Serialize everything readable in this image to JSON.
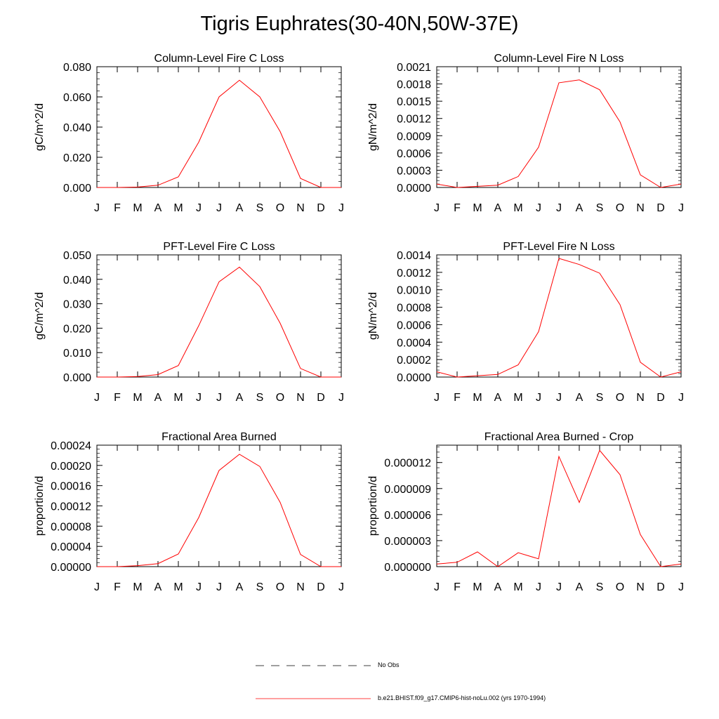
{
  "title": "Tigris Euphrates(30-40N,50W-37E)",
  "colors": {
    "series": "#ff0000",
    "axis": "#000000"
  },
  "legend": {
    "items": [
      {
        "label": "No Obs",
        "style": "dashed",
        "color": "#000000"
      },
      {
        "label": "b.e21.BHIST.f09_g17.CMIP6-hist-noLu.002 (yrs 1970-1994)",
        "style": "solid",
        "color": "#ff0000"
      }
    ]
  },
  "chart_data": [
    {
      "type": "line",
      "title": "Column-Level Fire C Loss",
      "ylabel": "gC/m^2/d",
      "categories": [
        "J",
        "F",
        "M",
        "A",
        "M",
        "J",
        "J",
        "A",
        "S",
        "O",
        "N",
        "D",
        "J"
      ],
      "ylim": [
        0,
        0.08
      ],
      "yticks": [
        "0.000",
        "0.020",
        "0.040",
        "0.060",
        "0.080"
      ],
      "series": [
        {
          "values": [
            0.0,
            0.0,
            0.0003,
            0.0015,
            0.007,
            0.03,
            0.06,
            0.071,
            0.06,
            0.037,
            0.006,
            0.0,
            0.0
          ]
        }
      ]
    },
    {
      "type": "line",
      "title": "Column-Level Fire N Loss",
      "ylabel": "gN/m^2/d",
      "categories": [
        "J",
        "F",
        "M",
        "A",
        "M",
        "J",
        "J",
        "A",
        "S",
        "O",
        "N",
        "D",
        "J"
      ],
      "ylim": [
        0,
        0.0021
      ],
      "yticks": [
        "0.0000",
        "0.0003",
        "0.0006",
        "0.0009",
        "0.0012",
        "0.0015",
        "0.0018",
        "0.0021"
      ],
      "series": [
        {
          "values": [
            6e-05,
            0.0,
            2e-05,
            4e-05,
            0.00019,
            0.0007,
            0.00182,
            0.00187,
            0.0017,
            0.00114,
            0.00022,
            0.0,
            6e-05
          ]
        }
      ]
    },
    {
      "type": "line",
      "title": "PFT-Level Fire C Loss",
      "ylabel": "gC/m^2/d",
      "categories": [
        "J",
        "F",
        "M",
        "A",
        "M",
        "J",
        "J",
        "A",
        "S",
        "O",
        "N",
        "D",
        "J"
      ],
      "ylim": [
        0,
        0.05
      ],
      "yticks": [
        "0.000",
        "0.010",
        "0.020",
        "0.030",
        "0.040",
        "0.050"
      ],
      "series": [
        {
          "values": [
            0.0,
            0.0,
            0.0002,
            0.001,
            0.0047,
            0.021,
            0.039,
            0.045,
            0.037,
            0.022,
            0.0035,
            0.0,
            0.0
          ]
        }
      ]
    },
    {
      "type": "line",
      "title": "PFT-Level Fire N Loss",
      "ylabel": "gN/m^2/d",
      "categories": [
        "J",
        "F",
        "M",
        "A",
        "M",
        "J",
        "J",
        "A",
        "S",
        "O",
        "N",
        "D",
        "J"
      ],
      "ylim": [
        0,
        0.0014
      ],
      "yticks": [
        "0.0000",
        "0.0002",
        "0.0004",
        "0.0006",
        "0.0008",
        "0.0010",
        "0.0012",
        "0.0014"
      ],
      "series": [
        {
          "values": [
            6e-05,
            0.0,
            1.5e-05,
            3e-05,
            0.00014,
            0.00052,
            0.00136,
            0.00129,
            0.00119,
            0.00083,
            0.00017,
            0.0,
            6e-05
          ]
        }
      ]
    },
    {
      "type": "line",
      "title": "Fractional Area Burned",
      "ylabel": "proportion/d",
      "categories": [
        "J",
        "F",
        "M",
        "A",
        "M",
        "J",
        "J",
        "A",
        "S",
        "O",
        "N",
        "D",
        "J"
      ],
      "ylim": [
        0,
        0.00024
      ],
      "yticks": [
        "0.00000",
        "0.00004",
        "0.00008",
        "0.00012",
        "0.00016",
        "0.00020",
        "0.00024"
      ],
      "series": [
        {
          "values": [
            0.0,
            0.0,
            2e-06,
            6e-06,
            2.5e-05,
            9.7e-05,
            0.00019,
            0.000222,
            0.000198,
            0.000127,
            2.4e-05,
            0.0,
            0.0
          ]
        }
      ]
    },
    {
      "type": "line",
      "title": "Fractional Area Burned - Crop",
      "ylabel": "proportion/d",
      "categories": [
        "J",
        "F",
        "M",
        "A",
        "M",
        "J",
        "J",
        "A",
        "S",
        "O",
        "N",
        "D",
        "J"
      ],
      "ylim": [
        0,
        1.4e-05
      ],
      "yticks": [
        "0.000000",
        "0.000003",
        "0.000006",
        "0.000009",
        "0.000012"
      ],
      "ytickvalues": [
        0,
        3e-06,
        6e-06,
        9e-06,
        1.2e-05
      ],
      "series": [
        {
          "values": [
            3e-07,
            5e-07,
            1.7e-06,
            0.0,
            1.6e-06,
            9e-07,
            1.27e-05,
            7.4e-06,
            1.34e-05,
            1.06e-05,
            3.7e-06,
            0.0,
            3e-07
          ]
        }
      ]
    }
  ]
}
